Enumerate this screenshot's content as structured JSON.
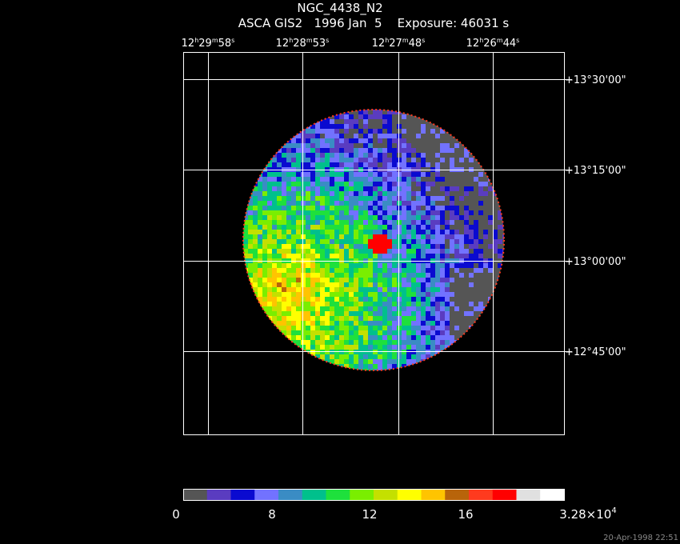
{
  "header": {
    "title": "NGC_4438_N2",
    "subtitle": "ASCA GIS2   1996 Jan  5    Exposure: 46031 s"
  },
  "ra_labels": [
    [
      "12",
      "h",
      "29",
      "m",
      "58",
      "s"
    ],
    [
      "12",
      "h",
      "28",
      "m",
      "53",
      "s"
    ],
    [
      "12",
      "h",
      "27",
      "m",
      "48",
      "s"
    ],
    [
      "12",
      "h",
      "26",
      "m",
      "44",
      "s"
    ]
  ],
  "dec_labels": [
    "+13°30'00\"",
    "+13°15'00\"",
    "+13°00'00\"",
    "+12°45'00\""
  ],
  "colorbar": {
    "colors": [
      "#555555",
      "#5a3cc0",
      "#0a0ad0",
      "#7272ff",
      "#3a8cc4",
      "#00c08c",
      "#1ee03c",
      "#7aee00",
      "#c4e000",
      "#ffff00",
      "#ffc400",
      "#b8640a",
      "#ff3a1e",
      "#ff0000",
      "#e0e0e0",
      "#ffffff"
    ],
    "labels": [
      [
        "0"
      ],
      [
        "8"
      ],
      [
        "12"
      ],
      [
        "16"
      ],
      [
        "3.28×10",
        "4"
      ]
    ]
  },
  "timestamp": "20-Apr-1998 22:51"
}
